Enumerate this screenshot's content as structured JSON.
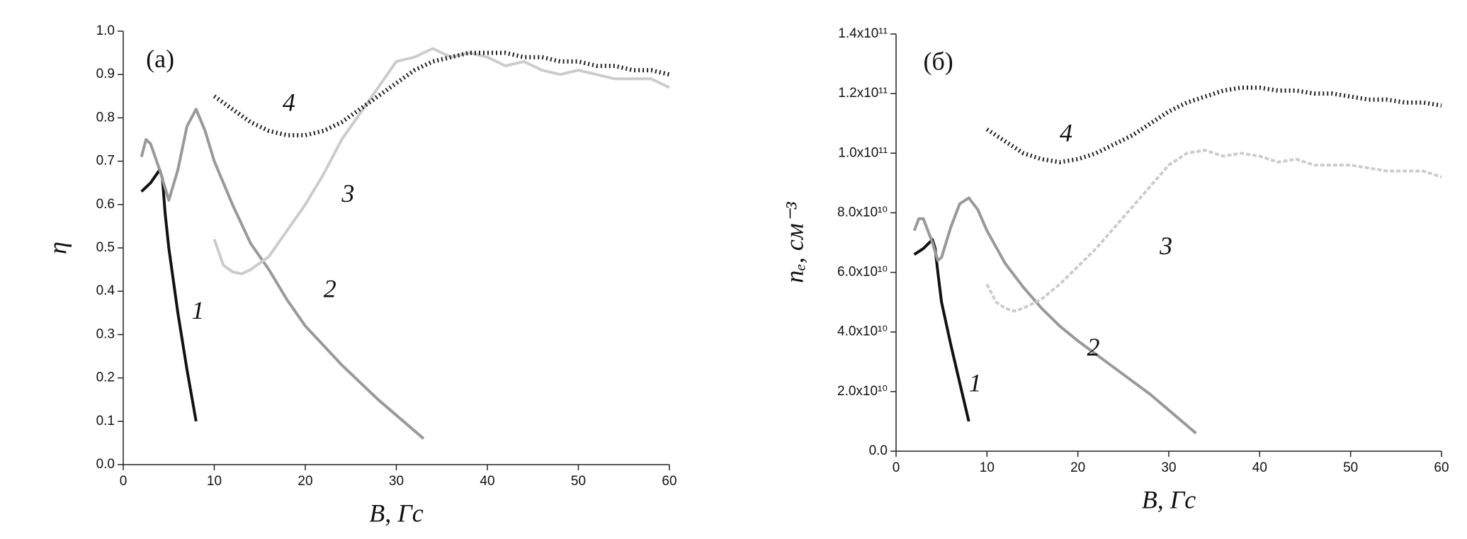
{
  "chart_data": [
    {
      "type": "line",
      "annotation": "(a)",
      "x_label": "B, Гс",
      "y_label": "η",
      "xlim": [
        0,
        60
      ],
      "xticks": [
        0,
        10,
        20,
        30,
        40,
        50,
        60
      ],
      "ylim": [
        0,
        1.0
      ],
      "yticks": [
        {
          "value": 0,
          "label": "0.0"
        },
        0.1,
        0.2,
        0.3,
        0.4,
        0.5,
        0.6,
        0.7,
        0.8,
        0.9,
        {
          "value": 1.0,
          "label": "1.0"
        }
      ],
      "series": [
        {
          "name": "1",
          "color": "#111111",
          "style": "solid",
          "x": [
            2,
            3,
            4,
            4.3,
            4.6,
            5,
            6,
            7,
            8
          ],
          "values": [
            0.63,
            0.65,
            0.68,
            0.66,
            0.58,
            0.5,
            0.35,
            0.22,
            0.1
          ]
        },
        {
          "name": "2",
          "color": "#999999",
          "style": "solid",
          "x": [
            2,
            2.5,
            3,
            4,
            5,
            6,
            7,
            8,
            9,
            10,
            12,
            14,
            16,
            18,
            20,
            24,
            28,
            33
          ],
          "values": [
            0.71,
            0.75,
            0.74,
            0.68,
            0.61,
            0.68,
            0.78,
            0.82,
            0.77,
            0.7,
            0.6,
            0.51,
            0.45,
            0.38,
            0.32,
            0.23,
            0.15,
            0.06
          ]
        },
        {
          "name": "3",
          "color": "#cccccc",
          "style": "solid",
          "x": [
            10,
            11,
            12,
            13,
            14,
            16,
            18,
            20,
            22,
            24,
            26,
            28,
            30,
            32,
            34,
            36,
            38,
            40,
            42,
            44,
            46,
            48,
            50,
            52,
            54,
            56,
            58,
            60
          ],
          "values": [
            0.52,
            0.46,
            0.445,
            0.44,
            0.45,
            0.48,
            0.54,
            0.6,
            0.67,
            0.75,
            0.81,
            0.87,
            0.93,
            0.94,
            0.96,
            0.94,
            0.95,
            0.94,
            0.92,
            0.93,
            0.91,
            0.9,
            0.91,
            0.9,
            0.89,
            0.89,
            0.89,
            0.87
          ]
        },
        {
          "name": "4",
          "color": "#222222",
          "style": "dotted",
          "x": [
            10,
            12,
            14,
            16,
            18,
            20,
            22,
            24,
            26,
            28,
            30,
            32,
            34,
            36,
            38,
            40,
            42,
            44,
            46,
            48,
            50,
            52,
            54,
            56,
            58,
            60
          ],
          "values": [
            0.85,
            0.82,
            0.79,
            0.77,
            0.76,
            0.76,
            0.77,
            0.79,
            0.82,
            0.85,
            0.88,
            0.91,
            0.93,
            0.94,
            0.95,
            0.95,
            0.95,
            0.94,
            0.94,
            0.93,
            0.93,
            0.92,
            0.92,
            0.91,
            0.91,
            0.9
          ]
        }
      ]
    },
    {
      "type": "line",
      "annotation": "(б)",
      "x_label": "B, Гс",
      "y_label": "nₑ, см⁻³",
      "xlim": [
        0,
        60
      ],
      "xticks": [
        0,
        10,
        20,
        30,
        40,
        50,
        60
      ],
      "ylim": [
        0,
        140000000000
      ],
      "yticks": [
        {
          "value": 0,
          "label": "0.0"
        },
        {
          "value": 20000000000,
          "label": "2.0x10¹⁰"
        },
        {
          "value": 40000000000,
          "label": "4.0x10¹⁰"
        },
        {
          "value": 60000000000,
          "label": "6.0x10¹⁰"
        },
        {
          "value": 80000000000,
          "label": "8.0x10¹⁰"
        },
        {
          "value": 100000000000,
          "label": "1.0x10¹¹"
        },
        {
          "value": 120000000000,
          "label": "1.2x10¹¹"
        },
        {
          "value": 140000000000,
          "label": "1.4x10¹¹"
        }
      ],
      "series": [
        {
          "name": "1",
          "color": "#111111",
          "style": "solid",
          "x": [
            2,
            3,
            4,
            4.3,
            4.6,
            5,
            6,
            7,
            8
          ],
          "values": [
            66000000000,
            68000000000,
            71000000000,
            68000000000,
            60000000000,
            50000000000,
            36000000000,
            23000000000,
            10000000000
          ]
        },
        {
          "name": "2",
          "color": "#999999",
          "style": "solid",
          "x": [
            2,
            2.5,
            3,
            4,
            4.6,
            5,
            6,
            7,
            8,
            9,
            10,
            12,
            14,
            16,
            18,
            20,
            24,
            28,
            33
          ],
          "values": [
            74000000000,
            78000000000,
            78000000000,
            70000000000,
            64000000000,
            65000000000,
            75000000000,
            83000000000,
            85000000000,
            81000000000,
            74000000000,
            63000000000,
            55000000000,
            48000000000,
            42000000000,
            37000000000,
            28000000000,
            19000000000,
            6000000000
          ]
        },
        {
          "name": "3",
          "color": "#cccccc",
          "style": "dashed",
          "x": [
            10,
            11,
            12,
            13,
            14,
            16,
            18,
            20,
            22,
            24,
            26,
            28,
            30,
            32,
            34,
            36,
            38,
            40,
            42,
            44,
            46,
            48,
            50,
            52,
            54,
            56,
            58,
            60
          ],
          "values": [
            56000000000,
            50000000000,
            48000000000,
            47000000000,
            48000000000,
            51000000000,
            56000000000,
            62000000000,
            68000000000,
            75000000000,
            82000000000,
            89000000000,
            96000000000,
            100000000000,
            101000000000,
            99000000000,
            100000000000,
            99000000000,
            97000000000,
            98000000000,
            96000000000,
            96000000000,
            96000000000,
            95000000000,
            94000000000,
            94000000000,
            94000000000,
            92000000000
          ]
        },
        {
          "name": "4",
          "color": "#222222",
          "style": "dotted",
          "x": [
            10,
            12,
            14,
            16,
            18,
            20,
            22,
            24,
            26,
            28,
            30,
            32,
            34,
            36,
            38,
            40,
            42,
            44,
            46,
            48,
            50,
            52,
            54,
            56,
            58,
            60
          ],
          "values": [
            108000000000,
            104000000000,
            100000000000,
            98000000000,
            97000000000,
            98000000000,
            100000000000,
            103000000000,
            106000000000,
            110000000000,
            114000000000,
            117000000000,
            119000000000,
            121000000000,
            122000000000,
            122000000000,
            121000000000,
            121000000000,
            120000000000,
            120000000000,
            119000000000,
            118000000000,
            118000000000,
            117000000000,
            117000000000,
            116000000000
          ]
        }
      ]
    }
  ]
}
